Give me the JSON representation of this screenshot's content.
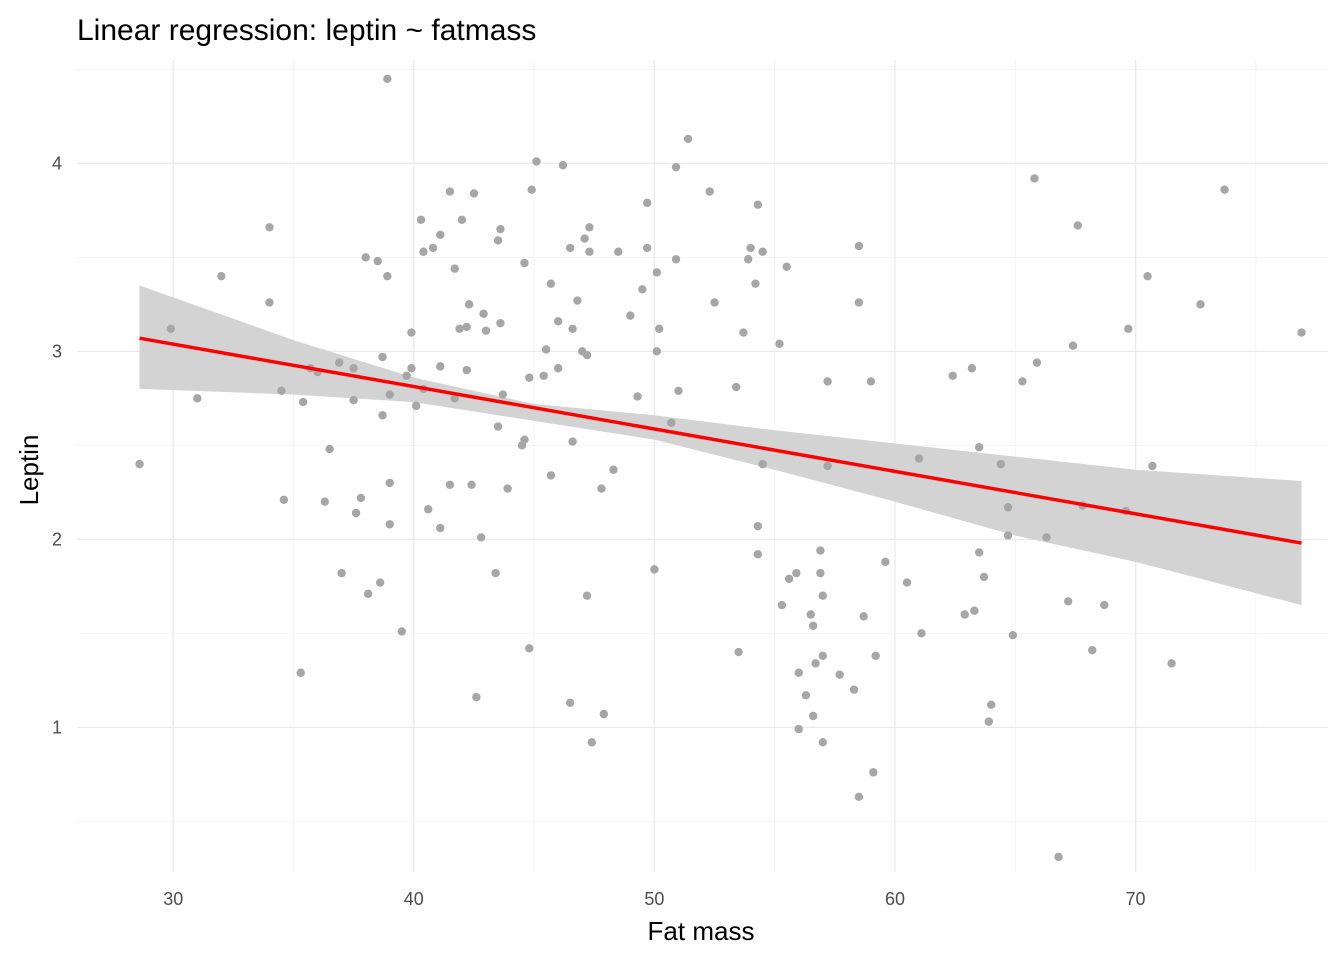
{
  "chart_data": {
    "type": "scatter",
    "title": "Linear regression: leptin ~ fatmass",
    "xlabel": "Fat mass",
    "ylabel": "Leptin",
    "xlim": [
      26,
      78
    ],
    "ylim": [
      0.23,
      4.55
    ],
    "x_ticks": [
      30,
      40,
      50,
      60,
      70
    ],
    "y_ticks": [
      1,
      2,
      3,
      4
    ],
    "grid": true,
    "colors": {
      "points": "#a6a6a6",
      "fit_line": "#ff0000",
      "confidence_band": "#d3d3d3"
    },
    "fit": {
      "x": [
        28.6,
        76.9
      ],
      "y": [
        3.07,
        1.98
      ],
      "band": [
        {
          "x": 28.6,
          "lower": 2.8,
          "upper": 3.35
        },
        {
          "x": 35,
          "lower": 2.77,
          "upper": 3.06
        },
        {
          "x": 40,
          "lower": 2.73,
          "upper": 2.86
        },
        {
          "x": 45,
          "lower": 2.63,
          "upper": 2.72
        },
        {
          "x": 50,
          "lower": 2.53,
          "upper": 2.66
        },
        {
          "x": 55,
          "lower": 2.37,
          "upper": 2.58
        },
        {
          "x": 60,
          "lower": 2.2,
          "upper": 2.51
        },
        {
          "x": 65,
          "lower": 2.02,
          "upper": 2.44
        },
        {
          "x": 70,
          "lower": 1.88,
          "upper": 2.37
        },
        {
          "x": 76.9,
          "lower": 1.65,
          "upper": 2.31
        }
      ]
    },
    "points": [
      [
        28.6,
        2.4
      ],
      [
        29.9,
        3.12
      ],
      [
        31.0,
        2.75
      ],
      [
        32.0,
        3.4
      ],
      [
        34.0,
        3.66
      ],
      [
        34.0,
        3.26
      ],
      [
        34.5,
        2.79
      ],
      [
        34.6,
        2.21
      ],
      [
        35.3,
        1.29
      ],
      [
        35.4,
        2.73
      ],
      [
        35.7,
        2.91
      ],
      [
        36.0,
        2.89
      ],
      [
        36.3,
        2.2
      ],
      [
        36.5,
        2.48
      ],
      [
        36.9,
        2.94
      ],
      [
        37.0,
        1.82
      ],
      [
        37.5,
        2.91
      ],
      [
        37.5,
        2.74
      ],
      [
        37.6,
        2.14
      ],
      [
        37.8,
        2.22
      ],
      [
        38.0,
        3.5
      ],
      [
        38.1,
        1.71
      ],
      [
        38.5,
        3.48
      ],
      [
        38.6,
        1.77
      ],
      [
        38.7,
        2.97
      ],
      [
        38.7,
        2.66
      ],
      [
        38.9,
        4.45
      ],
      [
        38.9,
        3.4
      ],
      [
        39.0,
        2.77
      ],
      [
        39.0,
        2.3
      ],
      [
        39.0,
        2.08
      ],
      [
        39.5,
        1.51
      ],
      [
        39.7,
        2.87
      ],
      [
        39.9,
        2.91
      ],
      [
        39.9,
        3.1
      ],
      [
        40.1,
        2.71
      ],
      [
        40.3,
        3.7
      ],
      [
        40.4,
        2.8
      ],
      [
        40.4,
        3.53
      ],
      [
        40.6,
        2.16
      ],
      [
        40.8,
        3.55
      ],
      [
        41.1,
        2.06
      ],
      [
        41.1,
        3.62
      ],
      [
        41.1,
        2.92
      ],
      [
        41.5,
        3.85
      ],
      [
        41.5,
        2.29
      ],
      [
        41.7,
        3.44
      ],
      [
        41.7,
        2.75
      ],
      [
        41.9,
        3.12
      ],
      [
        42.0,
        3.7
      ],
      [
        42.2,
        2.9
      ],
      [
        42.2,
        3.13
      ],
      [
        42.3,
        3.25
      ],
      [
        42.4,
        2.29
      ],
      [
        42.5,
        3.84
      ],
      [
        42.6,
        1.16
      ],
      [
        42.8,
        2.01
      ],
      [
        42.9,
        3.2
      ],
      [
        43.0,
        3.11
      ],
      [
        43.4,
        1.82
      ],
      [
        43.5,
        3.59
      ],
      [
        43.5,
        2.6
      ],
      [
        43.6,
        3.15
      ],
      [
        43.6,
        3.65
      ],
      [
        43.7,
        2.77
      ],
      [
        43.9,
        2.27
      ],
      [
        44.5,
        2.5
      ],
      [
        44.6,
        2.53
      ],
      [
        44.6,
        3.47
      ],
      [
        44.8,
        1.42
      ],
      [
        44.8,
        2.86
      ],
      [
        44.9,
        3.86
      ],
      [
        45.1,
        4.01
      ],
      [
        45.4,
        2.87
      ],
      [
        45.5,
        3.01
      ],
      [
        45.7,
        3.36
      ],
      [
        45.7,
        2.34
      ],
      [
        46.0,
        3.16
      ],
      [
        46.0,
        2.91
      ],
      [
        46.2,
        3.99
      ],
      [
        46.5,
        3.55
      ],
      [
        46.5,
        1.13
      ],
      [
        46.6,
        2.52
      ],
      [
        46.6,
        3.12
      ],
      [
        46.8,
        3.27
      ],
      [
        47.0,
        3.0
      ],
      [
        47.1,
        3.6
      ],
      [
        47.2,
        1.7
      ],
      [
        47.2,
        2.98
      ],
      [
        47.3,
        3.53
      ],
      [
        47.3,
        3.66
      ],
      [
        47.4,
        0.92
      ],
      [
        47.8,
        2.27
      ],
      [
        47.9,
        1.07
      ],
      [
        48.3,
        2.37
      ],
      [
        48.5,
        3.53
      ],
      [
        49.0,
        3.19
      ],
      [
        49.3,
        2.76
      ],
      [
        49.5,
        3.33
      ],
      [
        49.7,
        3.79
      ],
      [
        49.7,
        3.55
      ],
      [
        50.0,
        1.84
      ],
      [
        50.1,
        3.42
      ],
      [
        50.1,
        3.0
      ],
      [
        50.2,
        3.12
      ],
      [
        50.7,
        2.62
      ],
      [
        50.9,
        3.98
      ],
      [
        50.9,
        3.49
      ],
      [
        51.0,
        2.79
      ],
      [
        51.4,
        4.13
      ],
      [
        52.3,
        3.85
      ],
      [
        52.5,
        3.26
      ],
      [
        53.4,
        2.81
      ],
      [
        53.5,
        1.4
      ],
      [
        53.7,
        3.1
      ],
      [
        53.9,
        3.49
      ],
      [
        54.0,
        3.55
      ],
      [
        54.2,
        3.36
      ],
      [
        54.3,
        3.78
      ],
      [
        54.3,
        2.07
      ],
      [
        54.3,
        1.92
      ],
      [
        54.5,
        3.53
      ],
      [
        54.5,
        2.4
      ],
      [
        55.2,
        3.04
      ],
      [
        55.3,
        1.65
      ],
      [
        55.5,
        3.45
      ],
      [
        55.6,
        1.79
      ],
      [
        55.9,
        1.82
      ],
      [
        56.0,
        0.99
      ],
      [
        56.0,
        1.29
      ],
      [
        56.3,
        1.17
      ],
      [
        56.5,
        1.6
      ],
      [
        56.6,
        1.06
      ],
      [
        56.6,
        1.54
      ],
      [
        56.7,
        1.34
      ],
      [
        56.9,
        1.94
      ],
      [
        56.9,
        1.82
      ],
      [
        57.0,
        1.7
      ],
      [
        57.0,
        1.38
      ],
      [
        57.0,
        0.92
      ],
      [
        57.2,
        2.84
      ],
      [
        57.2,
        2.39
      ],
      [
        57.7,
        1.28
      ],
      [
        58.3,
        1.2
      ],
      [
        58.5,
        0.63
      ],
      [
        58.5,
        3.56
      ],
      [
        58.5,
        3.26
      ],
      [
        58.7,
        1.59
      ],
      [
        59.0,
        2.84
      ],
      [
        59.1,
        0.76
      ],
      [
        59.2,
        1.38
      ],
      [
        59.6,
        1.88
      ],
      [
        60.5,
        1.77
      ],
      [
        61.0,
        2.43
      ],
      [
        61.1,
        1.5
      ],
      [
        62.4,
        2.87
      ],
      [
        62.9,
        1.6
      ],
      [
        63.2,
        2.91
      ],
      [
        63.3,
        1.62
      ],
      [
        63.5,
        2.49
      ],
      [
        63.5,
        1.93
      ],
      [
        63.7,
        1.8
      ],
      [
        63.9,
        1.03
      ],
      [
        64.0,
        1.12
      ],
      [
        64.4,
        2.4
      ],
      [
        64.7,
        2.17
      ],
      [
        64.7,
        2.02
      ],
      [
        64.9,
        1.49
      ],
      [
        65.3,
        2.84
      ],
      [
        65.8,
        3.92
      ],
      [
        65.9,
        2.94
      ],
      [
        66.3,
        2.01
      ],
      [
        66.8,
        0.31
      ],
      [
        67.2,
        1.67
      ],
      [
        67.4,
        3.03
      ],
      [
        67.6,
        3.67
      ],
      [
        67.8,
        2.18
      ],
      [
        68.2,
        1.41
      ],
      [
        68.7,
        1.65
      ],
      [
        69.6,
        2.15
      ],
      [
        69.7,
        3.12
      ],
      [
        70.5,
        3.4
      ],
      [
        70.7,
        2.39
      ],
      [
        71.5,
        1.34
      ],
      [
        72.7,
        3.25
      ],
      [
        73.7,
        3.86
      ],
      [
        76.9,
        3.1
      ]
    ]
  }
}
